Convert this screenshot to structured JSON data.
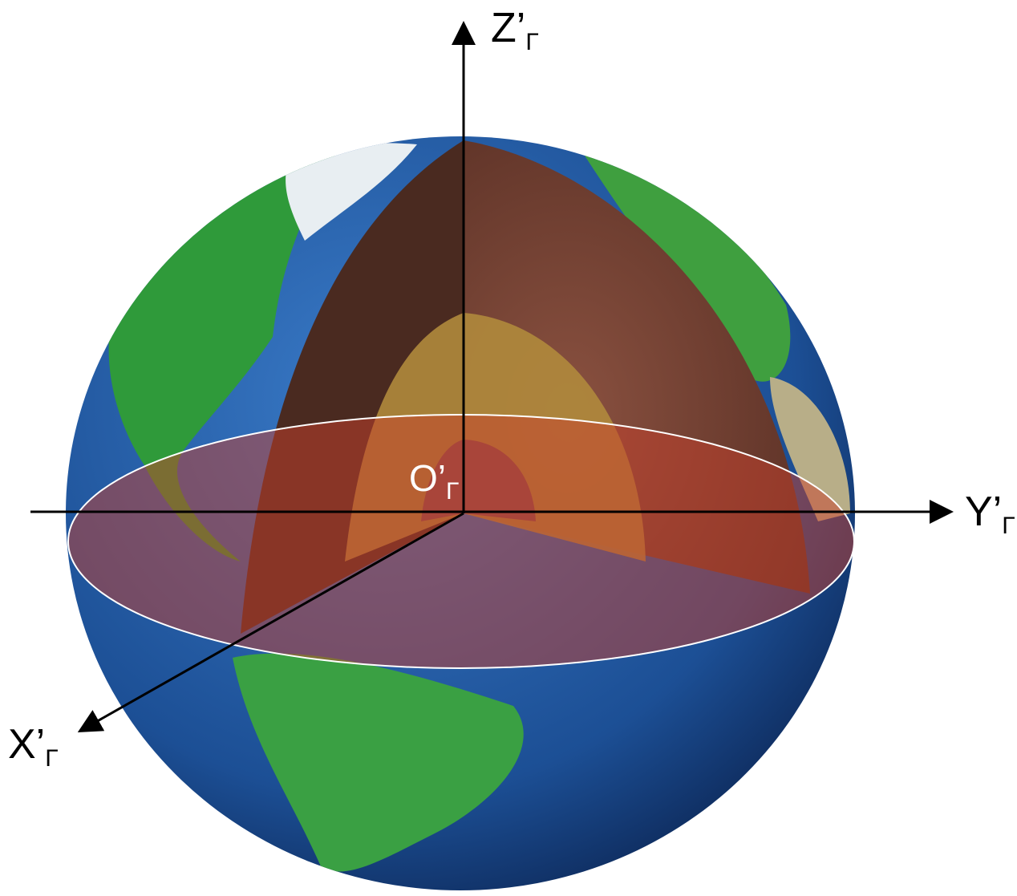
{
  "axes": {
    "z": {
      "label": "Z’",
      "subscript": "Γ"
    },
    "y": {
      "label": "Y’",
      "subscript": "Γ"
    },
    "x": {
      "label": "X’",
      "subscript": "Γ"
    },
    "origin": {
      "label": "O’",
      "subscript": "Γ"
    }
  }
}
